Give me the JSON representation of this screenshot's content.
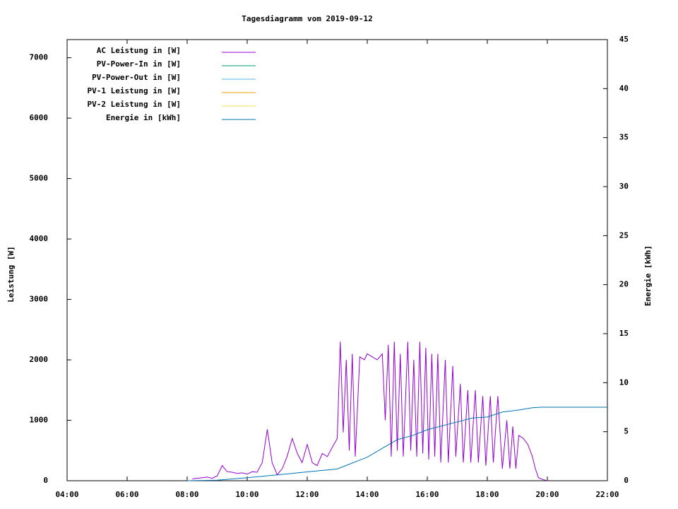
{
  "chart_data": {
    "type": "line",
    "title": "Tagesdiagramm vom 2019-09-12",
    "ylabel": "Leistung [W]",
    "y2label": "Energie [kWh]",
    "xlim": [
      4,
      22
    ],
    "xticks": [
      {
        "value": 4,
        "label": "04:00"
      },
      {
        "value": 6,
        "label": "06:00"
      },
      {
        "value": 8,
        "label": "08:00"
      },
      {
        "value": 10,
        "label": "10:00"
      },
      {
        "value": 12,
        "label": "12:00"
      },
      {
        "value": 14,
        "label": "14:00"
      },
      {
        "value": 16,
        "label": "16:00"
      },
      {
        "value": 18,
        "label": "18:00"
      },
      {
        "value": 20,
        "label": "20:00"
      },
      {
        "value": 22,
        "label": "22:00"
      }
    ],
    "ylim": [
      0,
      7300
    ],
    "yticks": [
      0,
      1000,
      2000,
      3000,
      4000,
      5000,
      6000,
      7000
    ],
    "y2lim": [
      0,
      45
    ],
    "y2ticks": [
      0,
      5,
      10,
      15,
      20,
      25,
      30,
      35,
      40,
      45
    ],
    "legend": "top-left",
    "series": [
      {
        "name": "AC Leistung in [W]",
        "color": "#9400d3",
        "x": [
          8.17,
          8.33,
          8.5,
          8.67,
          8.83,
          9.0,
          9.17,
          9.33,
          9.5,
          9.67,
          9.83,
          10.0,
          10.17,
          10.33,
          10.5,
          10.67,
          10.83,
          11.0,
          11.17,
          11.33,
          11.5,
          11.67,
          11.83,
          12.0,
          12.17,
          12.33,
          12.5,
          12.67,
          12.83,
          13.0,
          13.1,
          13.2,
          13.3,
          13.4,
          13.5,
          13.6,
          13.75,
          13.9,
          14.0,
          14.17,
          14.33,
          14.5,
          14.6,
          14.7,
          14.8,
          14.9,
          15.0,
          15.1,
          15.2,
          15.35,
          15.45,
          15.55,
          15.65,
          15.75,
          15.85,
          15.95,
          16.05,
          16.15,
          16.25,
          16.35,
          16.45,
          16.6,
          16.7,
          16.85,
          16.95,
          17.1,
          17.2,
          17.35,
          17.45,
          17.6,
          17.7,
          17.85,
          17.95,
          18.1,
          18.2,
          18.35,
          18.5,
          18.65,
          18.75,
          18.85,
          18.95,
          19.05,
          19.2,
          19.35,
          19.5,
          19.6,
          19.7,
          19.85,
          20.0
        ],
        "values": [
          30,
          40,
          50,
          60,
          40,
          80,
          250,
          150,
          140,
          120,
          130,
          110,
          150,
          140,
          300,
          850,
          300,
          100,
          200,
          400,
          700,
          450,
          300,
          600,
          300,
          250,
          450,
          400,
          550,
          700,
          2300,
          800,
          2000,
          500,
          2100,
          400,
          2050,
          2000,
          2100,
          2050,
          2000,
          2100,
          1000,
          2250,
          400,
          2300,
          500,
          2100,
          400,
          2300,
          500,
          2000,
          400,
          2300,
          450,
          2200,
          350,
          2100,
          400,
          2100,
          300,
          2000,
          300,
          1900,
          400,
          1600,
          300,
          1500,
          300,
          1500,
          300,
          1400,
          250,
          1400,
          300,
          1400,
          200,
          1000,
          200,
          900,
          200,
          750,
          700,
          600,
          400,
          200,
          50,
          20,
          0
        ]
      },
      {
        "name": "PV-Power-In in [W]",
        "color": "#009e73",
        "x": [],
        "values": []
      },
      {
        "name": "PV-Power-Out in [W]",
        "color": "#56b4e9",
        "x": [],
        "values": []
      },
      {
        "name": "PV-1 Leistung in [W]",
        "color": "#e69f00",
        "x": [],
        "values": []
      },
      {
        "name": "PV-2 Leistung in [W]",
        "color": "#f0e442",
        "x": [],
        "values": []
      },
      {
        "name": "Energie in [kWh]",
        "color": "#0072b2",
        "axis": "y2",
        "x": [
          8.0,
          9.0,
          10.0,
          11.0,
          12.0,
          13.0,
          13.5,
          14.0,
          14.5,
          15.0,
          15.5,
          16.0,
          16.5,
          17.0,
          17.5,
          18.0,
          18.5,
          19.0,
          19.5,
          19.8,
          20.0,
          22.0
        ],
        "values": [
          0,
          0.05,
          0.3,
          0.6,
          0.9,
          1.2,
          1.8,
          2.4,
          3.3,
          4.2,
          4.6,
          5.2,
          5.6,
          6.0,
          6.4,
          6.5,
          7.0,
          7.2,
          7.45,
          7.5,
          7.5,
          7.5
        ]
      }
    ]
  }
}
